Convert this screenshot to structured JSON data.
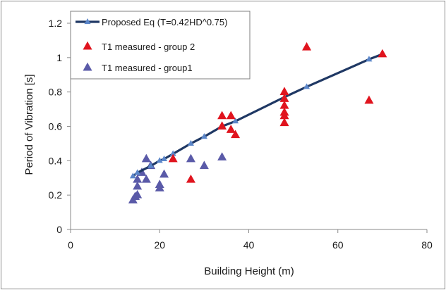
{
  "chart_data": {
    "type": "scatter",
    "xlabel": "Building Height  (m)",
    "ylabel": "Period of Vibration  [s]",
    "xlim": [
      0,
      80
    ],
    "ylim": [
      0,
      1.2
    ],
    "xticks": [
      "0",
      "20",
      "40",
      "60",
      "80"
    ],
    "yticks": [
      "0",
      "0.2",
      "0.4",
      "0.6",
      "0.8",
      "1",
      "1.2"
    ],
    "grid": false,
    "legend_position": "top-left",
    "series": [
      {
        "name": "Proposed Eq (T=0.42HD^0.75)",
        "style": "line-with-triangle-markers",
        "color": "#1f3864",
        "marker_color": "#5b86c9",
        "points": [
          [
            14,
            0.31
          ],
          [
            15,
            0.33
          ],
          [
            18,
            0.37
          ],
          [
            20,
            0.4
          ],
          [
            21,
            0.41
          ],
          [
            23,
            0.44
          ],
          [
            27,
            0.5
          ],
          [
            30,
            0.54
          ],
          [
            34,
            0.6
          ],
          [
            37,
            0.63
          ],
          [
            48,
            0.77
          ],
          [
            53,
            0.83
          ],
          [
            67,
            0.99
          ],
          [
            70,
            1.02
          ]
        ]
      },
      {
        "name": "T1 measured - group 2",
        "style": "triangle-markers",
        "color": "#e0141e",
        "points": [
          [
            23,
            0.41
          ],
          [
            27,
            0.29
          ],
          [
            34,
            0.6
          ],
          [
            34,
            0.66
          ],
          [
            36,
            0.58
          ],
          [
            36,
            0.66
          ],
          [
            37,
            0.55
          ],
          [
            48,
            0.62
          ],
          [
            48,
            0.66
          ],
          [
            48,
            0.68
          ],
          [
            48,
            0.72
          ],
          [
            48,
            0.76
          ],
          [
            48,
            0.8
          ],
          [
            53,
            1.06
          ],
          [
            67,
            0.75
          ],
          [
            70,
            1.02
          ]
        ]
      },
      {
        "name": "T1 measured  - group1",
        "style": "triangle-markers",
        "color": "#5a5aa8",
        "points": [
          [
            14,
            0.17
          ],
          [
            14.5,
            0.19
          ],
          [
            15,
            0.2
          ],
          [
            15,
            0.25
          ],
          [
            15,
            0.29
          ],
          [
            16,
            0.33
          ],
          [
            17,
            0.29
          ],
          [
            17,
            0.41
          ],
          [
            18,
            0.37
          ],
          [
            20,
            0.24
          ],
          [
            20,
            0.26
          ],
          [
            21,
            0.32
          ],
          [
            27,
            0.41
          ],
          [
            30,
            0.37
          ],
          [
            34,
            0.42
          ]
        ]
      }
    ]
  }
}
